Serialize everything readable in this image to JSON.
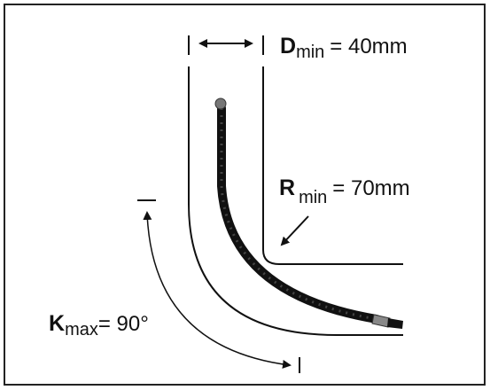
{
  "labels": [
    {
      "main": "D",
      "sub": "min",
      "rest": "= 40mm"
    },
    {
      "main": "R",
      "sub": "min",
      "rest": "= 70mm"
    },
    {
      "main": "K",
      "sub": "max",
      "rest": "= 90°"
    }
  ]
}
